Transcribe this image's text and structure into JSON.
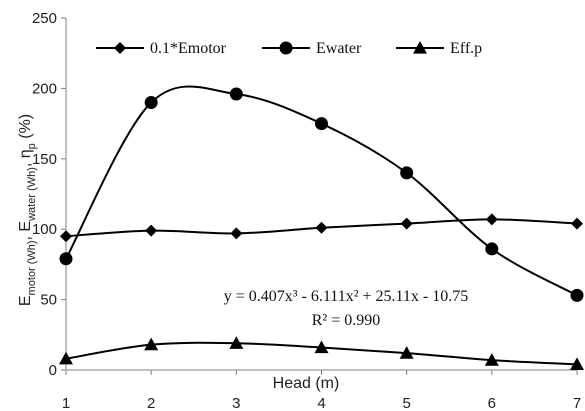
{
  "chart_data": {
    "type": "line",
    "x": [
      1,
      2,
      3,
      4,
      5,
      6,
      7
    ],
    "x_tick_labels": [
      "1",
      "2",
      "3",
      "4",
      "5",
      "6",
      "7"
    ],
    "y_tick_labels": [
      "0",
      "50",
      "100",
      "150",
      "200",
      "250"
    ],
    "xlim": [
      1,
      7
    ],
    "ylim": [
      0,
      250
    ],
    "xlabel": "Head (m)",
    "ylabel_parts": {
      "e1": "E",
      "s1": "motor (Wh)",
      "sep1": ", E",
      "s2": "water (Wh)",
      "sep2": ", η",
      "s3": "p",
      "tail": " (%)"
    },
    "grid": false,
    "legend_position": "top",
    "series": [
      {
        "name": "0.1*Emotor",
        "marker": "diamond",
        "values": [
          95,
          99,
          97,
          101,
          104,
          107,
          104
        ]
      },
      {
        "name": "Ewater",
        "marker": "circle",
        "values": [
          79,
          190,
          196,
          175,
          140,
          86,
          53
        ]
      },
      {
        "name": "Eff.p",
        "marker": "triangle",
        "values": [
          8,
          18,
          19,
          16,
          12,
          7,
          4
        ]
      }
    ],
    "annotations": [
      "y = 0.407x³ - 6.111x² + 25.11x - 10.75",
      "R² = 0.990"
    ],
    "colors": {
      "line": "#000000",
      "axis": "#7f7f7f"
    }
  }
}
